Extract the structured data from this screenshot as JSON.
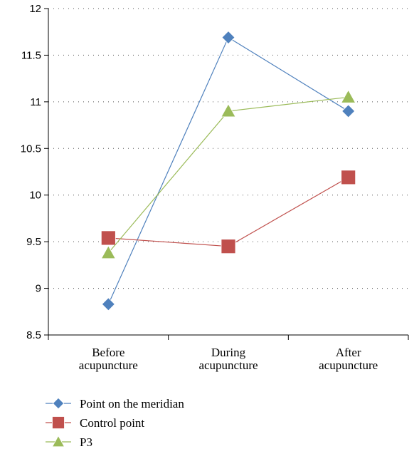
{
  "chart_data": {
    "type": "line",
    "title": "",
    "xlabel": "",
    "ylabel": "",
    "categories": [
      [
        "Before",
        "acupuncture"
      ],
      [
        "During",
        "acupuncture"
      ],
      [
        "After",
        "acupuncture"
      ]
    ],
    "ylim": [
      8.5,
      12
    ],
    "yticks": [
      8.5,
      9,
      9.5,
      10,
      10.5,
      11,
      11.5,
      12
    ],
    "grid": "horizontal-dotted",
    "legend_position": "bottom-left",
    "series": [
      {
        "name": "Point on the meridian",
        "values": [
          8.83,
          11.69,
          10.9
        ],
        "color": "#4f81bd",
        "marker": "diamond"
      },
      {
        "name": "Control point",
        "values": [
          9.54,
          9.45,
          10.19
        ],
        "color": "#c0504d",
        "marker": "square"
      },
      {
        "name": "P3",
        "values": [
          9.38,
          10.9,
          11.05
        ],
        "color": "#9bbb59",
        "marker": "triangle"
      }
    ]
  }
}
